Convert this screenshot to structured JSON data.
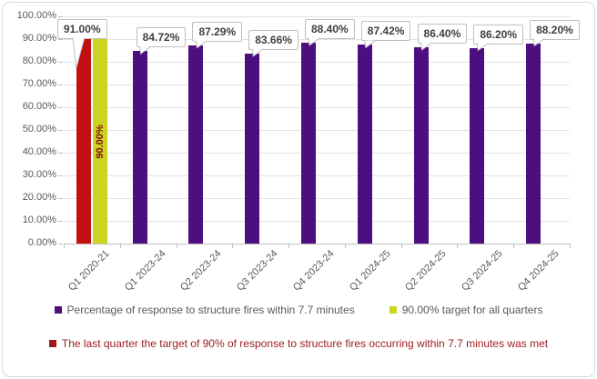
{
  "chart_data": {
    "type": "bar",
    "title": "",
    "xlabel": "",
    "ylabel": "",
    "ylim": [
      0,
      100
    ],
    "grid": true,
    "legend_position": "bottom",
    "categories": [
      "Q1 2020-21",
      "Q1 2023-24",
      "Q2 2023-24",
      "Q3 2023-24",
      "Q4 2023-24",
      "Q1 2024-25",
      "Q2 2024-25",
      "Q3 2024-25",
      "Q4 2024-25"
    ],
    "y_ticks": [
      "100.00%",
      "90.00%",
      "80.00%",
      "70.00%",
      "60.00%",
      "50.00%",
      "40.00%",
      "30.00%",
      "20.00%",
      "10.00%",
      "0.00%"
    ],
    "series": [
      {
        "name": "Percentage of response to structure fires within 7.7 minutes",
        "color": "#4d0e80",
        "values": [
          null,
          84.72,
          87.29,
          83.66,
          88.4,
          87.42,
          86.4,
          86.2,
          88.2
        ]
      },
      {
        "name": "90.00% target for all quarters",
        "color": "#cdd41f",
        "values": [
          90.0,
          null,
          null,
          null,
          null,
          null,
          null,
          null,
          null
        ],
        "inner_label": "90.00%",
        "inner_label_color": "#7f1010"
      },
      {
        "name": "The last quarter the target of 90% of response to structure fires occurring within 7.7 minutes was met",
        "color": "#9c1a1a",
        "bar_color": "#c20f0f",
        "values": [
          91.0,
          null,
          null,
          null,
          null,
          null,
          null,
          null,
          null
        ]
      }
    ],
    "data_labels": [
      "91.00%",
      "84.72%",
      "87.29%",
      "83.66%",
      "88.40%",
      "87.42%",
      "86.40%",
      "86.20%",
      "88.20%"
    ]
  },
  "legend": {
    "items": [
      {
        "label": "Percentage of response to structure fires within 7.7 minutes",
        "color": "#4d0e80",
        "text_color": "#595959"
      },
      {
        "label": "90.00% target for all quarters",
        "color": "#cdd41f",
        "text_color": "#595959"
      },
      {
        "label": "The last quarter the target of 90% of response to structure fires occurring within 7.7 minutes was met",
        "color": "#9c1a1a",
        "text_color": "#9c1a1a"
      }
    ]
  }
}
